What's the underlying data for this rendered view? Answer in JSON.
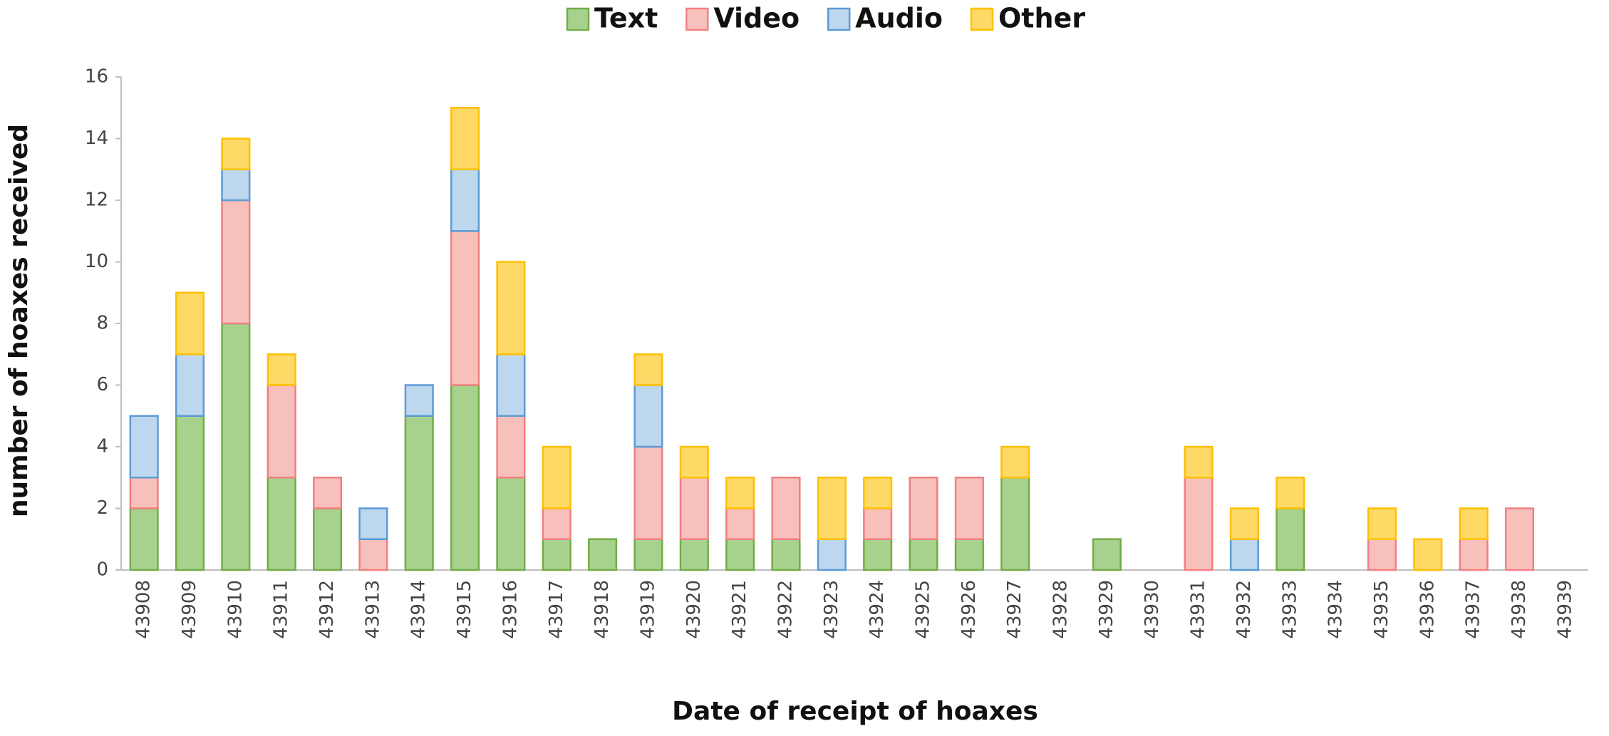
{
  "chart_data": {
    "type": "stacked_bar",
    "x_label": "Date of receipt of hoaxes",
    "y_label": "number of hoaxes received",
    "categories": [
      "43908",
      "43909",
      "43910",
      "43911",
      "43912",
      "43913",
      "43914",
      "43915",
      "43916",
      "43917",
      "43918",
      "43919",
      "43920",
      "43921",
      "43922",
      "43923",
      "43924",
      "43925",
      "43926",
      "43927",
      "43928",
      "43929",
      "43930",
      "43931",
      "43932",
      "43933",
      "43934",
      "43935",
      "43936",
      "43937",
      "43938",
      "43939"
    ],
    "series": [
      {
        "name": "Text",
        "color": "#a9d18e",
        "values": [
          2,
          5,
          8,
          3,
          2,
          0,
          5,
          6,
          3,
          1,
          1,
          1,
          1,
          1,
          1,
          0,
          1,
          1,
          1,
          3,
          0,
          1,
          0,
          0,
          0,
          2,
          0,
          0,
          0,
          0,
          0,
          0
        ]
      },
      {
        "name": "Video",
        "color": "#f8c0bb",
        "values": [
          1,
          0,
          4,
          3,
          1,
          1,
          0,
          5,
          2,
          1,
          0,
          3,
          2,
          1,
          2,
          0,
          1,
          2,
          2,
          0,
          0,
          0,
          0,
          3,
          0,
          0,
          0,
          1,
          0,
          1,
          2,
          0
        ]
      },
      {
        "name": "Audio",
        "color": "#bdd7ee",
        "values": [
          2,
          2,
          1,
          0,
          0,
          1,
          1,
          2,
          2,
          0,
          0,
          2,
          0,
          0,
          0,
          1,
          0,
          0,
          0,
          0,
          0,
          0,
          0,
          0,
          1,
          0,
          0,
          0,
          0,
          0,
          0,
          0
        ]
      },
      {
        "name": "Other",
        "color": "#ffd966",
        "values": [
          0,
          2,
          1,
          1,
          0,
          0,
          0,
          2,
          3,
          2,
          0,
          1,
          1,
          1,
          0,
          2,
          1,
          0,
          0,
          1,
          0,
          0,
          0,
          1,
          1,
          1,
          0,
          1,
          1,
          1,
          0,
          0
        ]
      }
    ],
    "ylim": [
      0,
      16
    ],
    "yticks": [
      0,
      2,
      4,
      6,
      8,
      10,
      12,
      14,
      16
    ],
    "grid": false,
    "legend": "top"
  }
}
